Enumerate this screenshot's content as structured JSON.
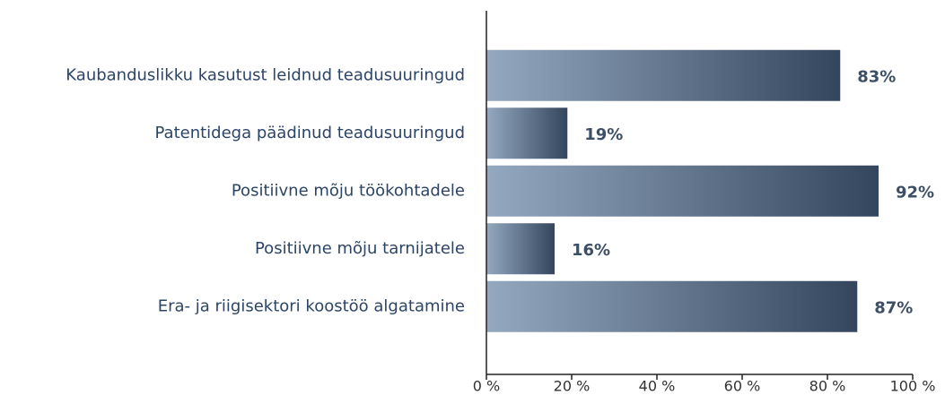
{
  "chart_data": {
    "type": "bar",
    "orientation": "horizontal",
    "categories": [
      "Kaubanduslikku kasutust leidnud teadusuuringud",
      "Patentidega päädinud teadusuuringud",
      "Positiivne mõju töökohtadele",
      "Positiivne mõju tarnijatele",
      "Era- ja riigisektori koostöö algatamine"
    ],
    "values": [
      83,
      19,
      92,
      16,
      87
    ],
    "value_labels": [
      "83%",
      "19%",
      "92%",
      "16%",
      "87%"
    ],
    "gradient": [
      "#94a9c0",
      "#34465d"
    ],
    "xlim": [
      0,
      100
    ],
    "xticks": [
      {
        "value": 0,
        "label": "0 %"
      },
      {
        "value": 20,
        "label": "20 %"
      },
      {
        "value": 40,
        "label": "40 %"
      },
      {
        "value": 60,
        "label": "60 %"
      },
      {
        "value": 80,
        "label": "80 %"
      },
      {
        "value": 100,
        "label": "100 %"
      }
    ]
  }
}
